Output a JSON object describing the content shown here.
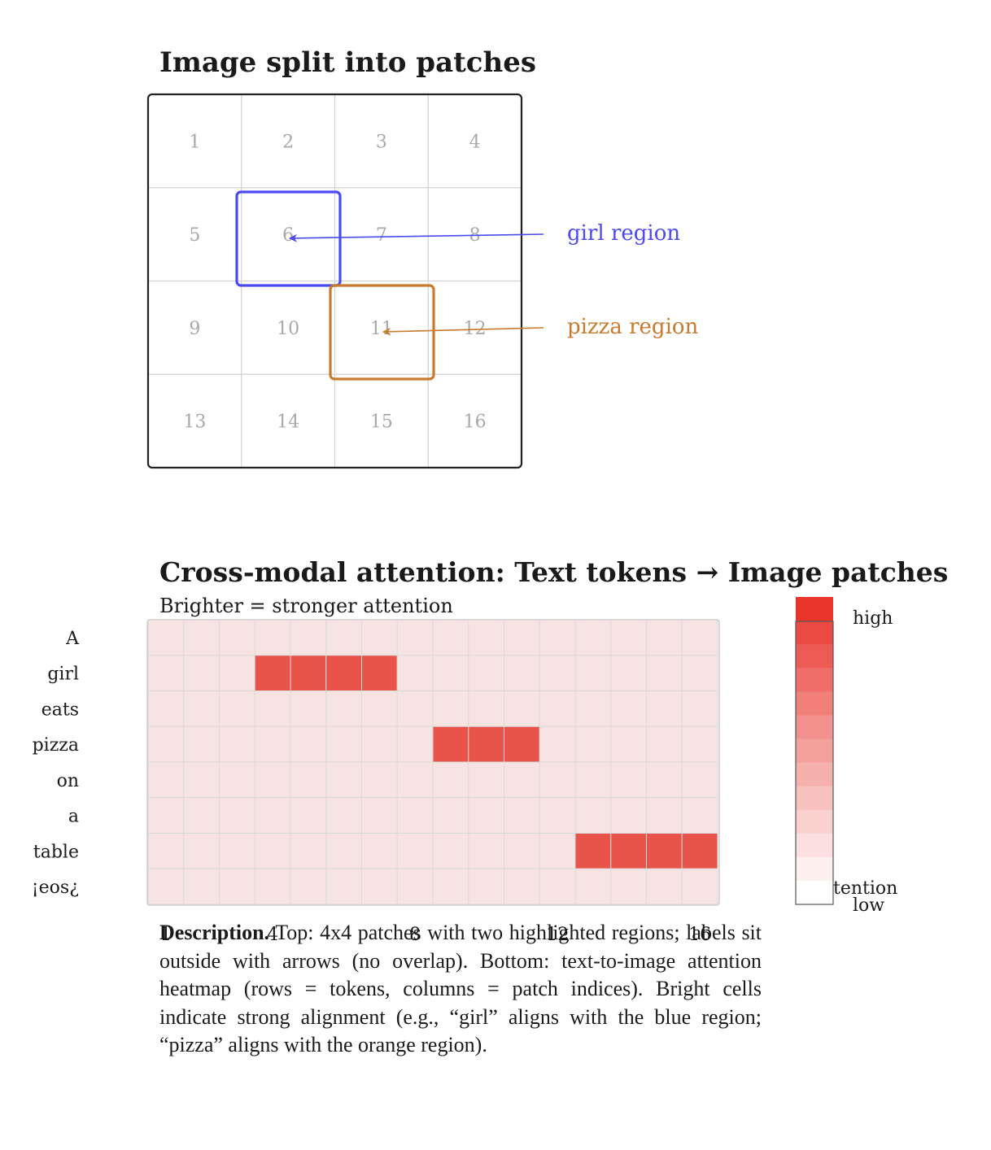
{
  "top": {
    "title": "Image split into patches",
    "patch_numbers": [
      "1",
      "2",
      "3",
      "4",
      "5",
      "6",
      "7",
      "8",
      "9",
      "10",
      "11",
      "12",
      "13",
      "14",
      "15",
      "16"
    ],
    "regions": [
      {
        "label": "girl region",
        "patch": 6,
        "color": "#4a4af0"
      },
      {
        "label": "pizza region",
        "patch": 11,
        "color": "#c97a2c"
      }
    ]
  },
  "bottom": {
    "title": "Cross-modal attention: Text tokens → Image patches",
    "subtitle": "Brighter = stronger attention",
    "tokens": [
      "A",
      "girl",
      "eats",
      "pizza",
      "on",
      "a",
      "table",
      "¡eos¿"
    ],
    "column_ticks": [
      "1",
      "4",
      "8",
      "12",
      "16"
    ],
    "colorbar": {
      "high_label": "high",
      "low_label": "low",
      "title_fragment": "tention",
      "high_color": "#e8342a",
      "low_color": "#ffffff"
    }
  },
  "chart_data": {
    "type": "heatmap",
    "title": "Cross-modal attention: Text tokens → Image patches",
    "subtitle": "Brighter = stronger attention",
    "rows": [
      "A",
      "girl",
      "eats",
      "pizza",
      "on",
      "a",
      "table",
      "¡eos¿"
    ],
    "columns": [
      1,
      2,
      3,
      4,
      5,
      6,
      7,
      8,
      9,
      10,
      11,
      12,
      13,
      14,
      15,
      16
    ],
    "column_ticks": [
      1,
      4,
      8,
      12,
      16
    ],
    "levels": {
      "low": 0,
      "high": 1
    },
    "values": [
      [
        0.05,
        0.05,
        0.05,
        0.05,
        0.05,
        0.05,
        0.05,
        0.05,
        0.05,
        0.05,
        0.05,
        0.05,
        0.05,
        0.05,
        0.05,
        0.05
      ],
      [
        0.05,
        0.05,
        0.05,
        0.9,
        0.9,
        0.9,
        0.9,
        0.05,
        0.05,
        0.05,
        0.05,
        0.05,
        0.05,
        0.05,
        0.05,
        0.05
      ],
      [
        0.05,
        0.05,
        0.05,
        0.05,
        0.05,
        0.05,
        0.05,
        0.05,
        0.05,
        0.05,
        0.05,
        0.05,
        0.05,
        0.05,
        0.05,
        0.05
      ],
      [
        0.05,
        0.05,
        0.05,
        0.05,
        0.05,
        0.05,
        0.05,
        0.05,
        0.9,
        0.9,
        0.9,
        0.05,
        0.05,
        0.05,
        0.05,
        0.05
      ],
      [
        0.05,
        0.05,
        0.05,
        0.05,
        0.05,
        0.05,
        0.05,
        0.05,
        0.05,
        0.05,
        0.05,
        0.05,
        0.05,
        0.05,
        0.05,
        0.05
      ],
      [
        0.05,
        0.05,
        0.05,
        0.05,
        0.05,
        0.05,
        0.05,
        0.05,
        0.05,
        0.05,
        0.05,
        0.05,
        0.05,
        0.05,
        0.05,
        0.05
      ],
      [
        0.05,
        0.05,
        0.05,
        0.05,
        0.05,
        0.05,
        0.05,
        0.05,
        0.05,
        0.05,
        0.05,
        0.05,
        0.9,
        0.9,
        0.9,
        0.9
      ],
      [
        0.05,
        0.05,
        0.05,
        0.05,
        0.05,
        0.05,
        0.05,
        0.05,
        0.05,
        0.05,
        0.05,
        0.05,
        0.05,
        0.05,
        0.05,
        0.05
      ]
    ],
    "colorbar_labels": {
      "high": "high",
      "low": "low"
    }
  },
  "description": {
    "lead": "Description.",
    "body": "Top: 4x4 patches with two highlighted regions; labels sit outside with arrows (no overlap). Bottom: text-to-image attention heatmap (rows = tokens, columns = patch indices). Bright cells indicate strong alignment (e.g., “girl” aligns with the blue region; “pizza” aligns with the orange region)."
  }
}
